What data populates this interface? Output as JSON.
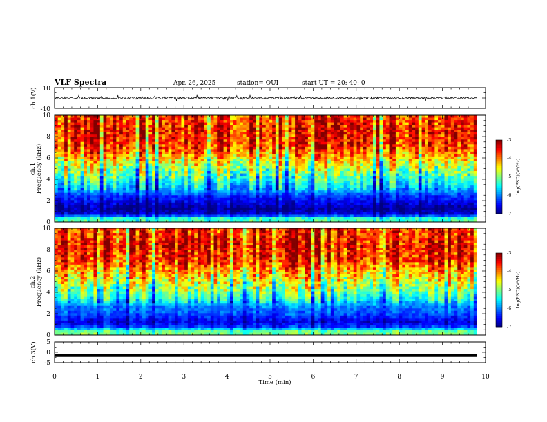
{
  "header": {
    "title": "VLF Spectra",
    "date": "Apr. 26, 2025",
    "station": "station= OUI",
    "start": "start  UT  =   20: 40: 0"
  },
  "chart_data": [
    {
      "type": "line",
      "panel": "ch1-waveform",
      "ylabel": "ch.1(V)",
      "ylim": [
        -10,
        10
      ],
      "yticks": [
        "10",
        "-10"
      ],
      "xlim": [
        0,
        10
      ],
      "baseline": 0,
      "amplitude": 2,
      "color": "#000000"
    },
    {
      "type": "heatmap",
      "panel": "ch1-spectrogram",
      "ylabel": [
        "ch.1",
        "Frequency  (kHz)"
      ],
      "yticks": [
        "0",
        "2",
        "4",
        "6",
        "8",
        "10"
      ],
      "ylim": [
        0,
        10
      ],
      "xlim": [
        0,
        10
      ],
      "data_end_min": 9.8,
      "colorbar": {
        "label": "log(PSD)(V²/Hz)",
        "ticks": [
          "-3",
          "-4",
          "-5",
          "-6",
          "-7"
        ],
        "range": [
          -7,
          -3
        ]
      },
      "profile_khz_logpsd": [
        [
          0.3,
          -5.2
        ],
        [
          0.7,
          -6.6
        ],
        [
          1.2,
          -6.9
        ],
        [
          1.8,
          -6.6
        ],
        [
          2.4,
          -6.3
        ],
        [
          3.2,
          -5.6
        ],
        [
          4.5,
          -5.0
        ],
        [
          5.5,
          -4.5
        ],
        [
          7,
          -3.6
        ],
        [
          8.5,
          -3.4
        ],
        [
          10,
          -3.6
        ]
      ]
    },
    {
      "type": "heatmap",
      "panel": "ch2-spectrogram",
      "ylabel": [
        "ch.2",
        "Frequency  (kHz)"
      ],
      "yticks": [
        "0",
        "2",
        "4",
        "6",
        "8",
        "10"
      ],
      "ylim": [
        0,
        10
      ],
      "xlim": [
        0,
        10
      ],
      "data_end_min": 9.8,
      "colorbar": {
        "label": "log(PSD)(V²/Hz)",
        "ticks": [
          "-3",
          "-4",
          "-5",
          "-6",
          "-7"
        ],
        "range": [
          -7,
          -3
        ]
      },
      "profile_khz_logpsd": [
        [
          0.3,
          -5.0
        ],
        [
          0.8,
          -6.3
        ],
        [
          1.3,
          -6.6
        ],
        [
          1.9,
          -6.2
        ],
        [
          2.6,
          -6.0
        ],
        [
          3.3,
          -5.4
        ],
        [
          4.5,
          -4.8
        ],
        [
          5.5,
          -4.3
        ],
        [
          7,
          -3.6
        ],
        [
          8.5,
          -3.4
        ],
        [
          10,
          -3.6
        ]
      ]
    },
    {
      "type": "line",
      "panel": "ch3-waveform",
      "ylabel": "ch.3(V)",
      "ylim": [
        -5,
        5
      ],
      "yticks": [
        "5",
        "0",
        "-5"
      ],
      "xlim": [
        0,
        10
      ],
      "constant_value": -1.6,
      "color": "#000000"
    }
  ],
  "xaxis": {
    "label": "Time  (min)",
    "ticks": [
      "0",
      "1",
      "2",
      "3",
      "4",
      "5",
      "6",
      "7",
      "8",
      "9",
      "10"
    ]
  }
}
